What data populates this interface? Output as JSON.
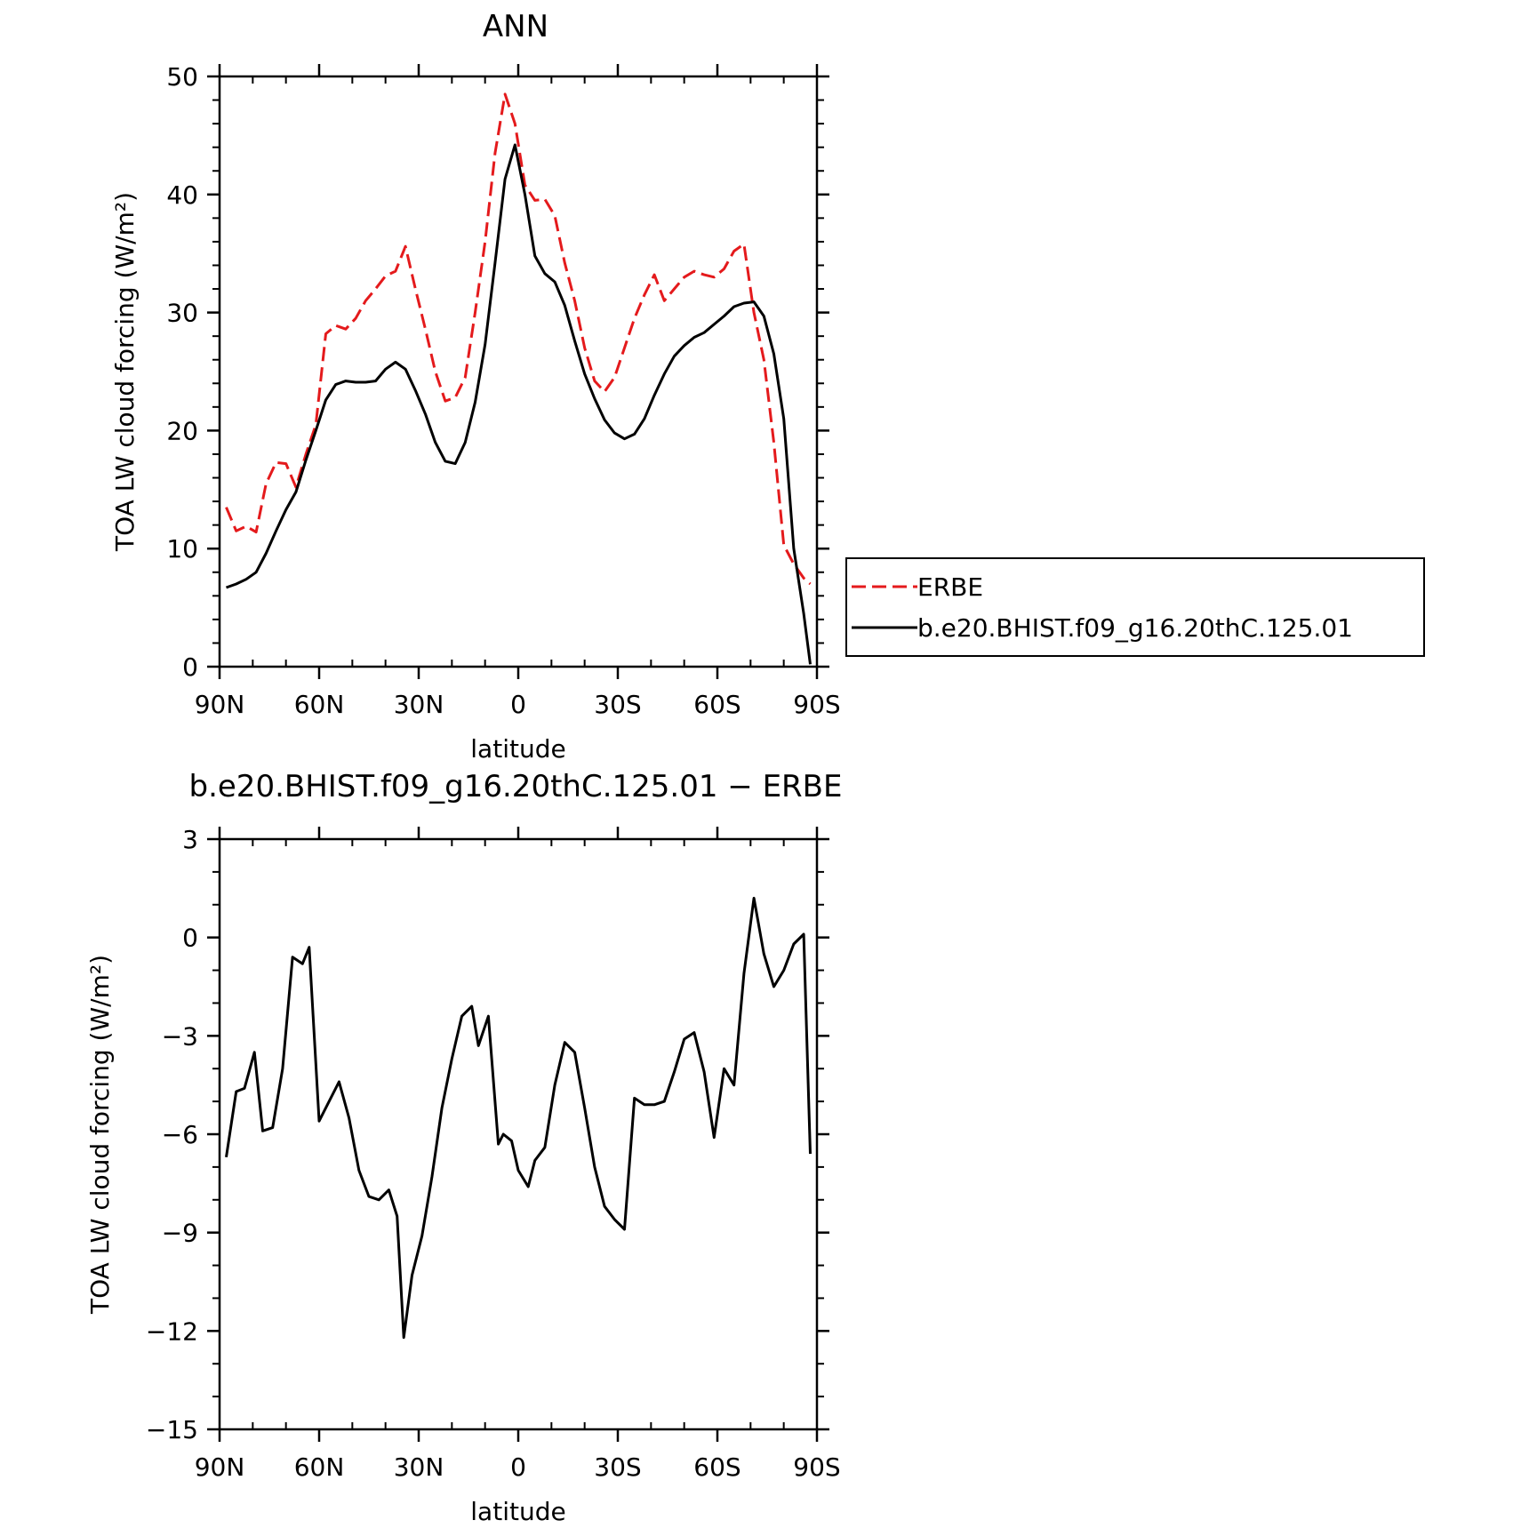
{
  "chart_data": [
    {
      "type": "line",
      "title": "ANN",
      "xlabel": "latitude",
      "ylabel": "TOA LW cloud forcing (W/m²)",
      "xlim": [
        -90,
        90
      ],
      "ylim": [
        0,
        50
      ],
      "xticks": [
        {
          "v": -90,
          "label": "90N"
        },
        {
          "v": -60,
          "label": "60N"
        },
        {
          "v": -30,
          "label": "30N"
        },
        {
          "v": 0,
          "label": "0"
        },
        {
          "v": 30,
          "label": "30S"
        },
        {
          "v": 60,
          "label": "60S"
        },
        {
          "v": 90,
          "label": "90S"
        }
      ],
      "yticks": [
        {
          "v": 0,
          "label": "0"
        },
        {
          "v": 10,
          "label": "10"
        },
        {
          "v": 20,
          "label": "20"
        },
        {
          "v": 30,
          "label": "30"
        },
        {
          "v": 40,
          "label": "40"
        },
        {
          "v": 50,
          "label": "50"
        }
      ],
      "grid": false,
      "legend": "right",
      "x": [
        -88,
        -85,
        -82,
        -79,
        -76,
        -73,
        -70,
        -67,
        -64,
        -61,
        -58,
        -55,
        -52,
        -49,
        -46,
        -43,
        -40,
        -37,
        -34,
        -31,
        -28,
        -25,
        -22,
        -19,
        -16,
        -13,
        -10,
        -7,
        -4,
        -1,
        2,
        5,
        8,
        11,
        14,
        17,
        20,
        23,
        26,
        29,
        32,
        35,
        38,
        41,
        44,
        47,
        50,
        53,
        56,
        59,
        62,
        65,
        68,
        71,
        74,
        77,
        80,
        83,
        86,
        88
      ],
      "series": [
        {
          "name": "ERBE",
          "color": "#e41a1c",
          "dash": true,
          "values": [
            13.5,
            11.5,
            11.9,
            11.4,
            15.5,
            17.3,
            17.2,
            15.2,
            18.0,
            20.5,
            28.2,
            28.9,
            28.6,
            29.5,
            31.0,
            32.0,
            33.1,
            33.5,
            35.6,
            32.0,
            28.6,
            25.0,
            22.5,
            22.8,
            24.5,
            30.0,
            36.0,
            43.5,
            48.5,
            46.0,
            40.8,
            39.5,
            39.6,
            38.2,
            34.2,
            31.0,
            27.0,
            24.2,
            23.3,
            24.5,
            27.0,
            29.5,
            31.5,
            33.2,
            31.0,
            32.0,
            33.0,
            33.5,
            33.2,
            33.0,
            33.7,
            35.2,
            35.8,
            30.0,
            26.0,
            19.0,
            10.3,
            8.7,
            7.5,
            7.0
          ]
        },
        {
          "name": "b.e20.BHIST.f09_g16.20thC.125.01",
          "color": "#000000",
          "dash": false,
          "values": [
            6.7,
            7.0,
            7.4,
            8.0,
            9.6,
            11.5,
            13.3,
            14.8,
            17.5,
            20.0,
            22.6,
            23.9,
            24.2,
            24.1,
            24.1,
            24.2,
            25.2,
            25.8,
            25.2,
            23.4,
            21.4,
            19.0,
            17.4,
            17.2,
            19.0,
            22.4,
            27.3,
            34.2,
            41.3,
            44.2,
            40.0,
            34.8,
            33.3,
            32.6,
            30.6,
            27.6,
            24.8,
            22.7,
            20.9,
            19.8,
            19.3,
            19.7,
            21.0,
            23.0,
            24.8,
            26.3,
            27.2,
            27.9,
            28.3,
            29.0,
            29.7,
            30.5,
            30.8,
            30.9,
            29.7,
            26.5,
            21.0,
            10.0,
            4.5,
            0.2
          ]
        }
      ]
    },
    {
      "type": "line",
      "title": "b.e20.BHIST.f09_g16.20thC.125.01 − ERBE",
      "xlabel": "latitude",
      "ylabel": "TOA LW cloud forcing (W/m²)",
      "xlim": [
        -90,
        90
      ],
      "ylim": [
        -15,
        3
      ],
      "xticks": [
        {
          "v": -90,
          "label": "90N"
        },
        {
          "v": -60,
          "label": "60N"
        },
        {
          "v": -30,
          "label": "30N"
        },
        {
          "v": 0,
          "label": "0"
        },
        {
          "v": 30,
          "label": "30S"
        },
        {
          "v": 60,
          "label": "60S"
        },
        {
          "v": 90,
          "label": "90S"
        }
      ],
      "yticks": [
        {
          "v": -15,
          "label": "−15"
        },
        {
          "v": -12,
          "label": "−12"
        },
        {
          "v": -9,
          "label": "−9"
        },
        {
          "v": -6,
          "label": "−6"
        },
        {
          "v": -3,
          "label": "−3"
        },
        {
          "v": 0,
          "label": "0"
        },
        {
          "v": 3,
          "label": "3"
        }
      ],
      "grid": false,
      "x": [
        -88,
        -85,
        -82.5,
        -79.5,
        -77,
        -74,
        -71,
        -68,
        -65,
        -63,
        -60,
        -57,
        -54,
        -51,
        -48,
        -45,
        -42,
        -39,
        -36.5,
        -34.5,
        -32,
        -29,
        -26,
        -23,
        -20,
        -17,
        -14,
        -12,
        -9,
        -6,
        -4.5,
        -2,
        0,
        3,
        5,
        8,
        11,
        14,
        17,
        20,
        23,
        26,
        29,
        32,
        35,
        38,
        41,
        44,
        47,
        50,
        53,
        56,
        59,
        62,
        65,
        68,
        71,
        74,
        77,
        80,
        83,
        86,
        88
      ],
      "series": [
        {
          "name": "",
          "color": "#000000",
          "dash": false,
          "values": [
            -6.7,
            -4.7,
            -4.6,
            -3.5,
            -5.9,
            -5.8,
            -4.0,
            -0.6,
            -0.8,
            -0.3,
            -5.6,
            -5.0,
            -4.4,
            -5.5,
            -7.1,
            -7.9,
            -8.0,
            -7.7,
            -8.5,
            -12.2,
            -10.3,
            -9.1,
            -7.3,
            -5.2,
            -3.7,
            -2.4,
            -2.1,
            -3.3,
            -2.4,
            -6.3,
            -6.0,
            -6.2,
            -7.1,
            -7.6,
            -6.8,
            -6.4,
            -4.5,
            -3.2,
            -3.5,
            -5.2,
            -7.0,
            -8.2,
            -8.6,
            -8.9,
            -4.9,
            -5.1,
            -5.1,
            -5.0,
            -4.1,
            -3.1,
            -2.9,
            -4.1,
            -6.1,
            -4.0,
            -4.5,
            -1.1,
            1.2,
            -0.5,
            -1.5,
            -1.0,
            -0.2,
            0.1,
            -6.6
          ]
        }
      ]
    }
  ]
}
